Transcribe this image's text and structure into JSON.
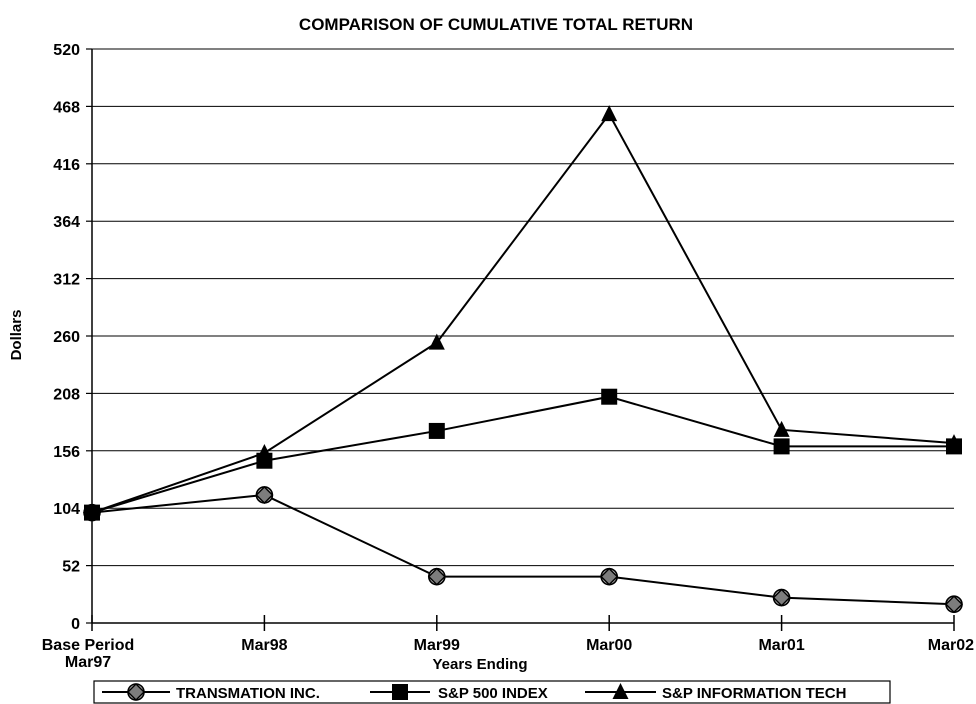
{
  "chart_data": {
    "type": "line",
    "title": "COMPARISON OF CUMULATIVE TOTAL RETURN",
    "xlabel": "Years Ending",
    "ylabel": "Dollars",
    "categories": [
      [
        "Base Period",
        "Mar97"
      ],
      [
        "Mar98"
      ],
      [
        "Mar99"
      ],
      [
        "Mar00"
      ],
      [
        "Mar01"
      ],
      [
        "Mar02"
      ]
    ],
    "ylim": [
      0,
      520
    ],
    "yticks": [
      0,
      52,
      104,
      156,
      208,
      260,
      312,
      364,
      416,
      468,
      520
    ],
    "grid": true,
    "legend_position": "bottom",
    "series": [
      {
        "name": "TRANSMATION INC.",
        "marker": "diamond-circle",
        "values": [
          100,
          116,
          42,
          42,
          23,
          17
        ]
      },
      {
        "name": "S&P 500 INDEX",
        "marker": "square",
        "values": [
          100,
          147,
          174,
          205,
          160,
          160
        ]
      },
      {
        "name": "S&P INFORMATION TECH",
        "marker": "triangle",
        "values": [
          100,
          154,
          254,
          461,
          175,
          163
        ]
      }
    ]
  }
}
